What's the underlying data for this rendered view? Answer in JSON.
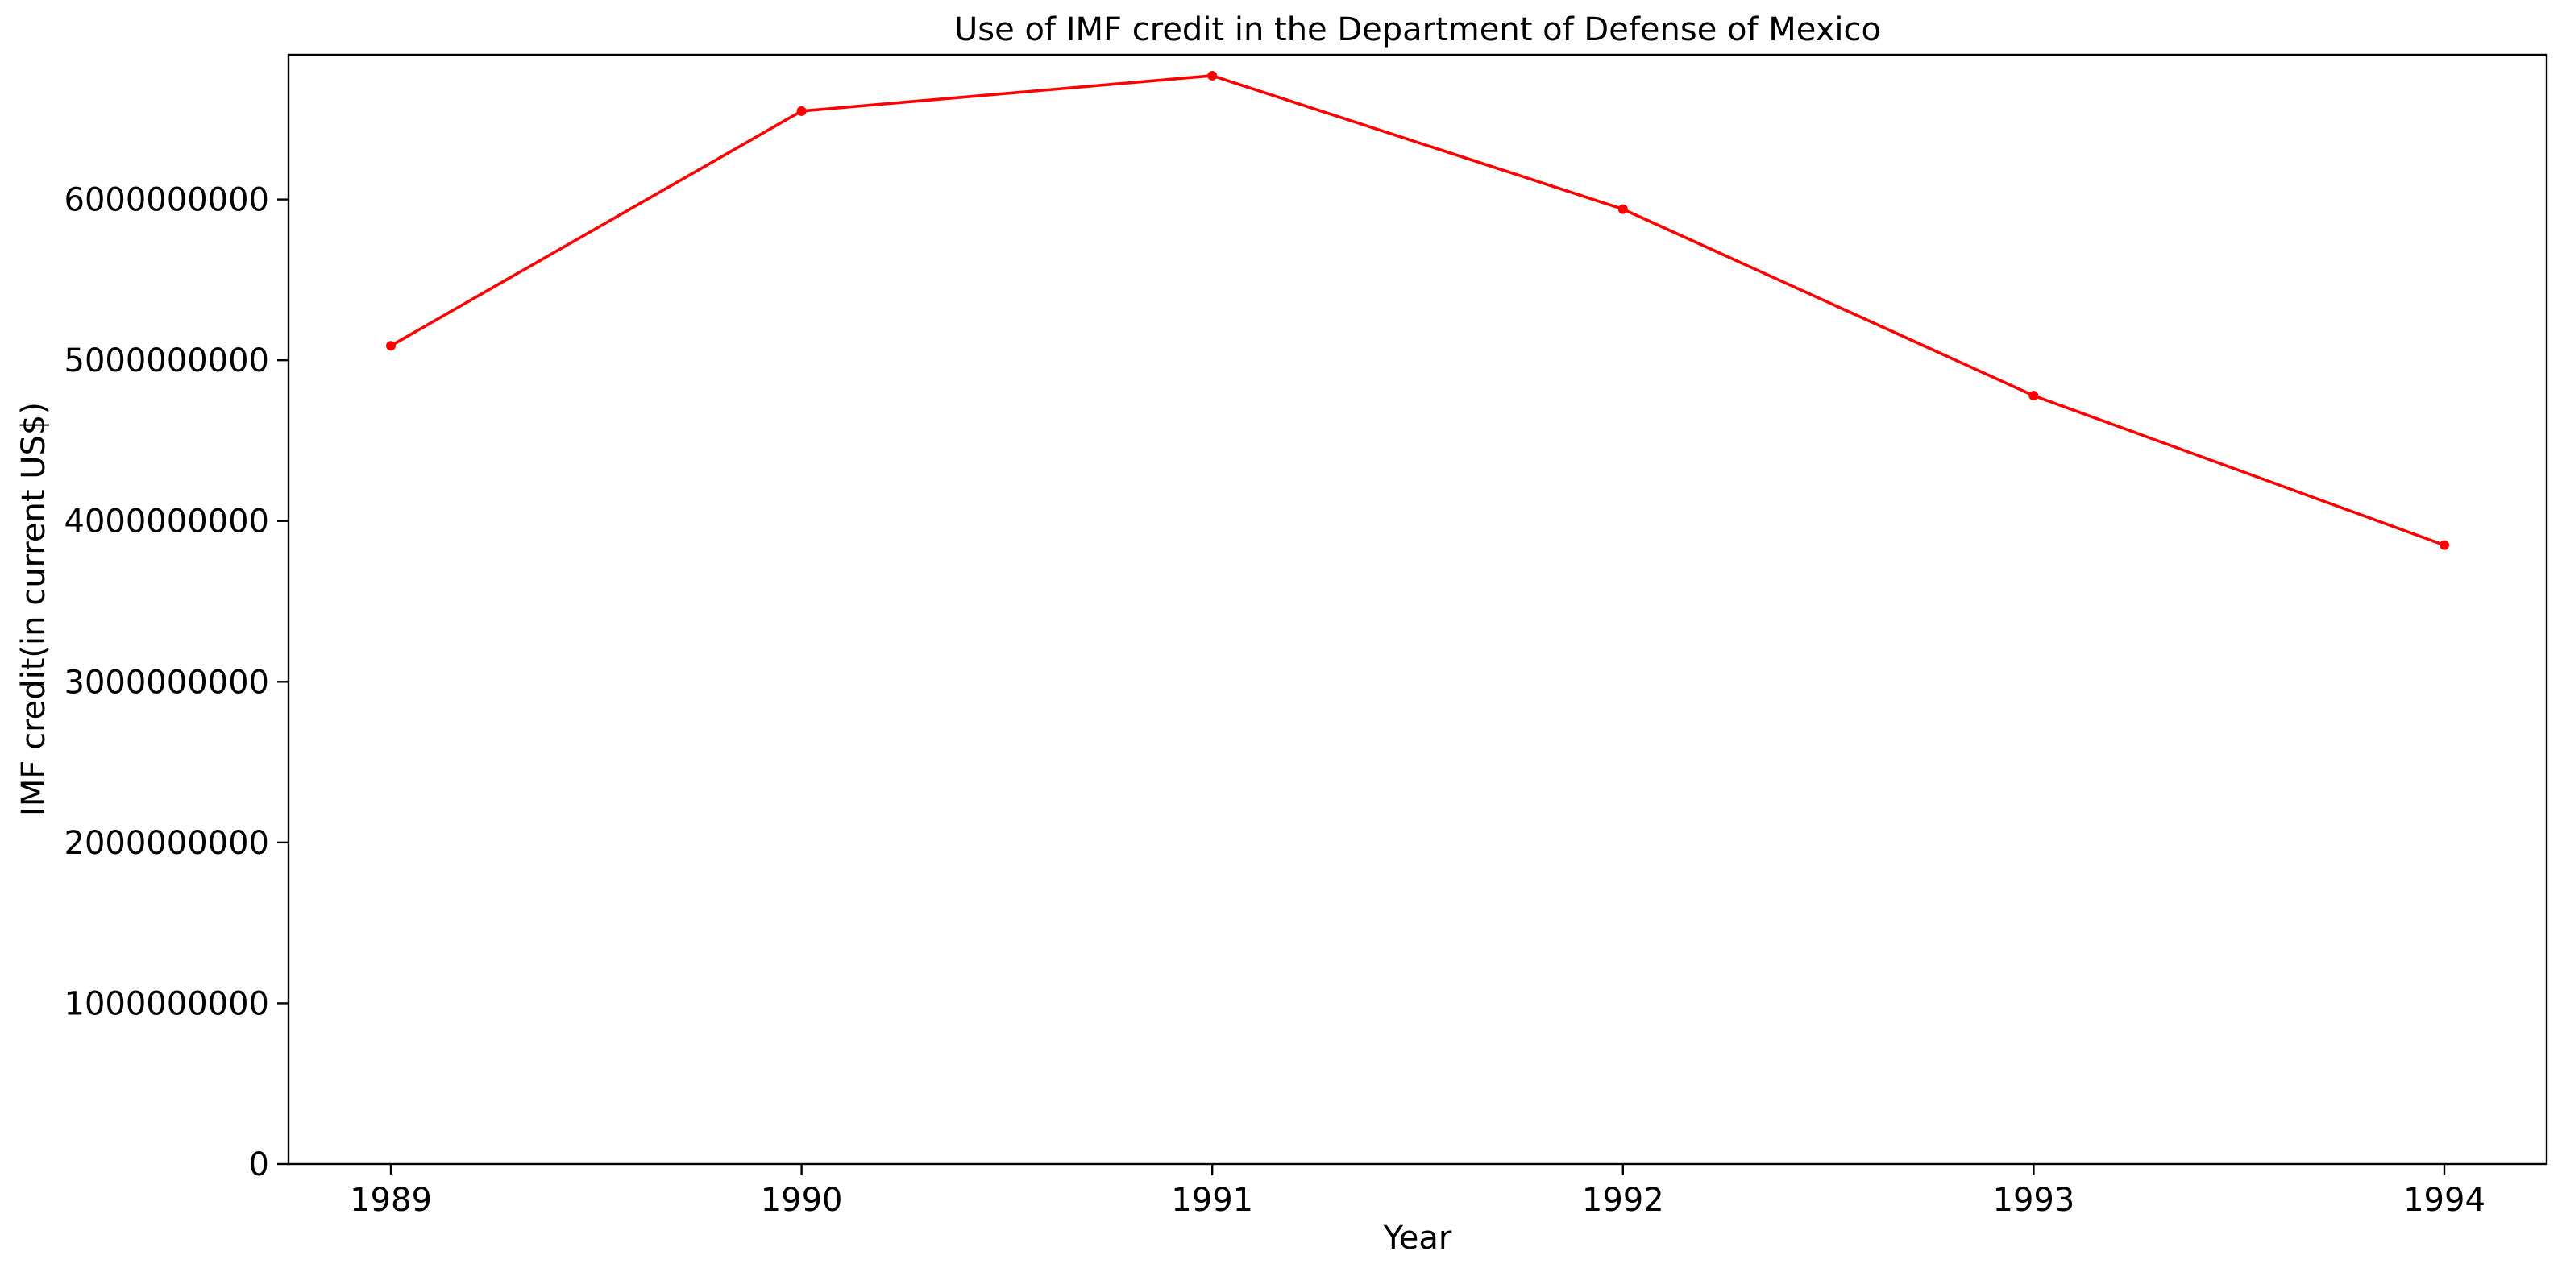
{
  "chart_data": {
    "type": "line",
    "title": "Use of IMF credit in the Department of Defense of Mexico",
    "xlabel": "Year",
    "ylabel": "IMF credit(in current US$)",
    "categories": [
      "1989",
      "1990",
      "1991",
      "1992",
      "1993",
      "1994"
    ],
    "series": [
      {
        "values": [
          5090000000,
          6550000000,
          6770000000,
          5940000000,
          4780000000,
          3850000000
        ],
        "color": "#ff0000"
      }
    ],
    "ylim": [
      0,
      6900000000
    ],
    "yticks": [
      0,
      1000000000,
      2000000000,
      3000000000,
      4000000000,
      5000000000,
      6000000000
    ],
    "ytick_labels": [
      "0",
      "1000000000",
      "2000000000",
      "3000000000",
      "4000000000",
      "5000000000",
      "6000000000"
    ],
    "grid": false,
    "legend": "none"
  }
}
